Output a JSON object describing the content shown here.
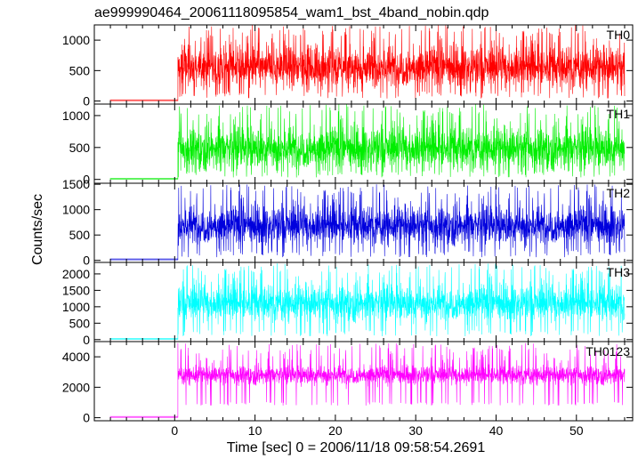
{
  "chart_data": {
    "type": "line",
    "title": "ae999990464_20061118095854_wam1_bst_4band_nobin.qdp",
    "xlabel": "Time [sec] 0 = 2006/11/18 09:58:54.2691",
    "ylabel": "Counts/sec",
    "xlim": [
      -10,
      57
    ],
    "x_ticks": [
      "0",
      "10",
      "20",
      "30",
      "40",
      "50"
    ],
    "x_tick_values": [
      0,
      10,
      20,
      30,
      40,
      50
    ],
    "onset_time": 0.4,
    "t_start": -8,
    "t_end": 56,
    "series": [
      {
        "name": "TH0",
        "color": "#ff0000",
        "ylim": [
          -50,
          1250
        ],
        "y_ticks": [
          "0",
          "500",
          "1000"
        ],
        "y_tick_values": [
          0,
          500,
          1000
        ],
        "pre_level": 5,
        "mean": 550,
        "spread": 300,
        "peak": 1250,
        "floor": 40
      },
      {
        "name": "TH1",
        "color": "#00ee00",
        "ylim": [
          -60,
          1180
        ],
        "y_ticks": [
          "0",
          "500",
          "1000"
        ],
        "y_tick_values": [
          0,
          500,
          1000
        ],
        "pre_level": 5,
        "mean": 480,
        "spread": 290,
        "peak": 1180,
        "floor": 30
      },
      {
        "name": "TH2",
        "color": "#0000dd",
        "ylim": [
          -40,
          1520
        ],
        "y_ticks": [
          "0",
          "500",
          "1000",
          "1500"
        ],
        "y_tick_values": [
          0,
          500,
          1000,
          1500
        ],
        "pre_level": 10,
        "mean": 680,
        "spread": 330,
        "peak": 1500,
        "floor": 60
      },
      {
        "name": "TH3",
        "color": "#00ffff",
        "ylim": [
          -60,
          2350
        ],
        "y_ticks": [
          "0",
          "500",
          "1000",
          "1500",
          "2000"
        ],
        "y_tick_values": [
          0,
          500,
          1000,
          1500,
          2000
        ],
        "pre_level": 10,
        "mean": 1100,
        "spread": 480,
        "peak": 2320,
        "floor": 100
      },
      {
        "name": "TH0123",
        "color": "#ff00ff",
        "ylim": [
          -200,
          5000
        ],
        "y_ticks": [
          "0",
          "2000",
          "4000"
        ],
        "y_tick_values": [
          0,
          2000,
          4000
        ],
        "pre_level": 20,
        "mean": 2800,
        "spread": 550,
        "peak": 4900,
        "floor": 800
      }
    ]
  }
}
